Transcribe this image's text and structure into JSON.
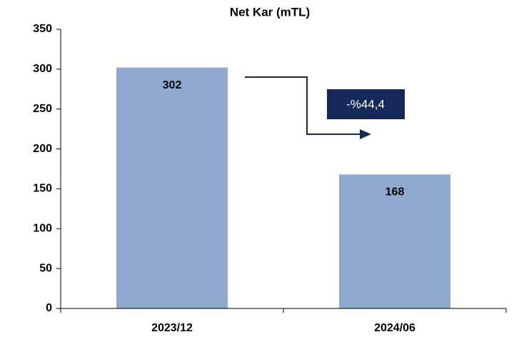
{
  "chart_data": {
    "type": "bar",
    "title": "Net Kar (mTL)",
    "categories": [
      "2023/12",
      "2024/06"
    ],
    "values": [
      302,
      168
    ],
    "color": "#8FA9CF",
    "ylim": [
      0,
      350
    ],
    "yticks": [
      0,
      50,
      100,
      150,
      200,
      250,
      300,
      350
    ],
    "grid": false,
    "annotation": "-%44,4"
  }
}
